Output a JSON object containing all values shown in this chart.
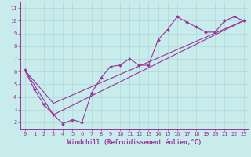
{
  "bg_color": "#c8ecec",
  "grid_color": "#b0d8d8",
  "line_color": "#993399",
  "xlabel": "Windchill (Refroidissement éolien,°C)",
  "xlim": [
    -0.5,
    23.5
  ],
  "ylim": [
    1.5,
    11.5
  ],
  "xticks": [
    0,
    1,
    2,
    3,
    4,
    5,
    6,
    7,
    8,
    9,
    10,
    11,
    12,
    13,
    14,
    15,
    16,
    17,
    18,
    19,
    20,
    21,
    22,
    23
  ],
  "yticks": [
    2,
    3,
    4,
    5,
    6,
    7,
    8,
    9,
    10,
    11
  ],
  "line1_x": [
    0,
    1,
    2,
    3,
    4,
    5,
    6,
    7,
    8,
    9,
    10,
    11,
    12,
    13,
    14,
    15,
    16,
    17,
    18,
    19,
    20,
    21,
    22,
    23
  ],
  "line1_y": [
    6.1,
    4.6,
    3.4,
    2.6,
    1.9,
    2.2,
    2.0,
    4.3,
    5.5,
    6.4,
    6.5,
    7.0,
    6.5,
    6.5,
    8.5,
    9.3,
    10.3,
    9.9,
    9.5,
    9.1,
    9.1,
    10.0,
    10.3,
    10.0
  ],
  "line2_x": [
    0,
    3,
    23
  ],
  "line2_y": [
    6.1,
    3.5,
    10.0
  ],
  "line3_x": [
    0,
    3,
    23
  ],
  "line3_y": [
    6.1,
    2.6,
    10.0
  ],
  "tick_fontsize": 5.0,
  "xlabel_fontsize": 5.5,
  "line_width": 0.8,
  "marker_size": 2.0
}
